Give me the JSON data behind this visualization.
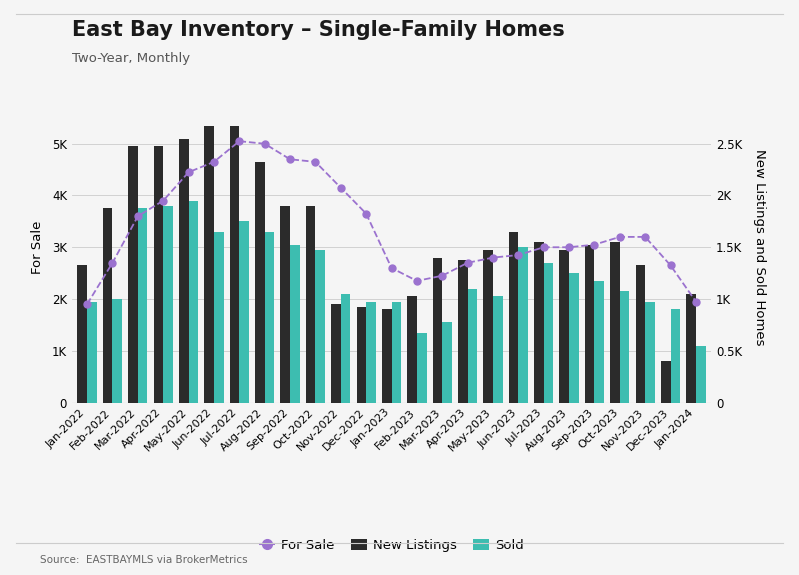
{
  "title": "East Bay Inventory – Single-Family Homes",
  "subtitle": "Two-Year, Monthly",
  "source": "Source:  EASTBAYMLS via BrokerMetrics",
  "ylabel_left": "For Sale",
  "ylabel_right": "New Listings and Sold Homes",
  "categories": [
    "Jan-2022",
    "Feb-2022",
    "Mar-2022",
    "Apr-2022",
    "May-2022",
    "Jun-2022",
    "Jul-2022",
    "Aug-2022",
    "Sep-2022",
    "Oct-2022",
    "Nov-2022",
    "Dec-2022",
    "Jan-2023",
    "Feb-2023",
    "Mar-2023",
    "Apr-2023",
    "May-2023",
    "Jun-2023",
    "Jul-2023",
    "Aug-2023",
    "Sep-2023",
    "Oct-2023",
    "Nov-2023",
    "Dec-2023",
    "Jan-2024"
  ],
  "for_sale": [
    1900,
    2700,
    3600,
    3900,
    4450,
    4650,
    5050,
    5000,
    4700,
    4650,
    4150,
    3650,
    2600,
    2350,
    2450,
    2700,
    2800,
    2850,
    3000,
    3000,
    3050,
    3200,
    3200,
    2650,
    1950
  ],
  "new_listings": [
    2650,
    3750,
    4950,
    4950,
    5100,
    5350,
    5350,
    4650,
    3800,
    3800,
    1900,
    1850,
    1800,
    2050,
    2800,
    2750,
    2950,
    3300,
    3100,
    2950,
    3050,
    3100,
    2650,
    800,
    2100
  ],
  "sold": [
    1950,
    2000,
    3750,
    3800,
    3900,
    3300,
    3500,
    3300,
    3050,
    2950,
    2100,
    1950,
    1950,
    1350,
    1550,
    2200,
    2050,
    3000,
    2700,
    2500,
    2350,
    2150,
    1950,
    1800,
    1100
  ],
  "for_sale_color": "#9b72cf",
  "new_listings_color": "#2b2b2b",
  "sold_color": "#3dbdb0",
  "background_color": "#f5f5f5",
  "panel_color": "#f0f0f0",
  "ylim_left": [
    0,
    6000
  ],
  "ylim_right": [
    0,
    3000
  ],
  "yticks_left": [
    0,
    1000,
    2000,
    3000,
    4000,
    5000
  ],
  "ytick_labels_left": [
    "0",
    "1K",
    "2K",
    "3K",
    "4K",
    "5K"
  ],
  "yticks_right": [
    0,
    500,
    1000,
    1500,
    2000,
    2500
  ],
  "ytick_labels_right": [
    "0",
    "0.5K",
    "1K",
    "1.5K",
    "2K",
    "2.5K"
  ],
  "title_fontsize": 15,
  "subtitle_fontsize": 9.5,
  "tick_fontsize": 8.5,
  "ylabel_fontsize": 9.5,
  "source_fontsize": 7.5,
  "legend_fontsize": 9.5,
  "bar_width": 0.38
}
